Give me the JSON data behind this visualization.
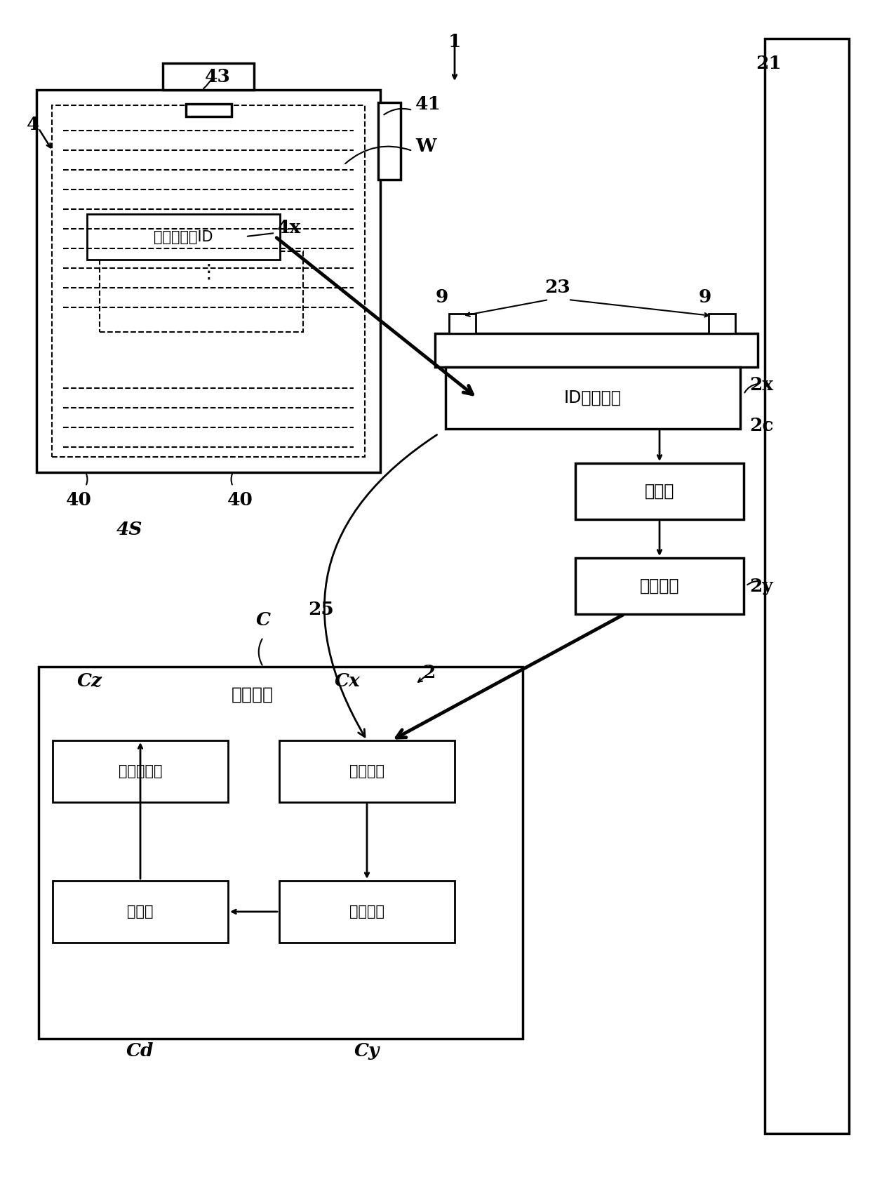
{
  "bg_color": "#ffffff",
  "labels": {
    "num_1": "1",
    "num_2": "2",
    "num_4": "4",
    "num_9a": "9",
    "num_9b": "9",
    "num_21": "21",
    "num_23": "23",
    "num_25": "25",
    "num_40a": "40",
    "num_40b": "40",
    "num_41": "41",
    "num_43": "43",
    "num_4s": "4S",
    "num_4x": "4x",
    "num_2c": "2c",
    "num_2x": "2x",
    "num_2y": "2y",
    "label_C": "C",
    "label_Cx": "Cx",
    "label_Cy": "Cy",
    "label_Cz": "Cz",
    "label_Cd": "Cd",
    "box_id": "ID读取机构",
    "box_sensor": "传感器",
    "box_comm": "通信机构",
    "box_upper": "上位系统",
    "box_data_proc": "数据处理部",
    "box_database": "数据库",
    "box_comm2": "通信机构",
    "box_assoc": "关联机构",
    "box_id_label": "个体识别用ID"
  }
}
